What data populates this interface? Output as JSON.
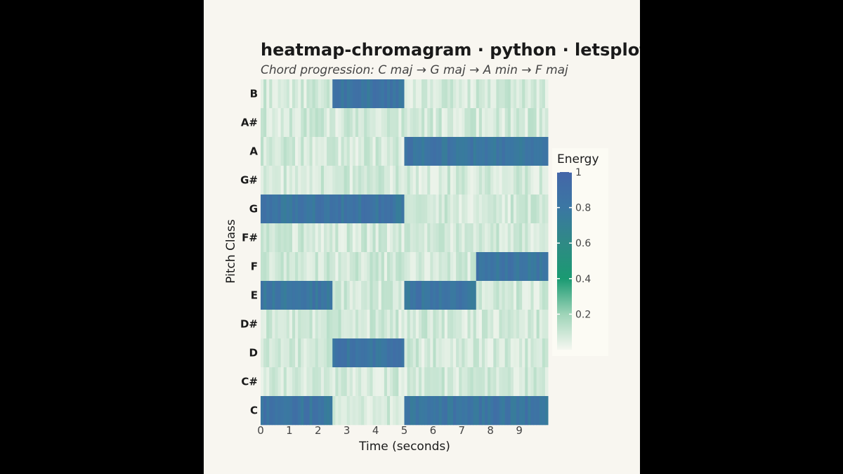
{
  "chart_data": {
    "type": "heatmap",
    "title": "heatmap-chromagram · python · letsplot · anyplot.ai",
    "subtitle": "Chord progression: C maj → G maj → A min → F maj",
    "xlabel": "Time (seconds)",
    "ylabel": "Pitch Class",
    "xlim": [
      0,
      10
    ],
    "x_ticks": [
      "0",
      "1",
      "2",
      "3",
      "4",
      "5",
      "6",
      "7",
      "8",
      "9"
    ],
    "pitch_classes": [
      "B",
      "A#",
      "A",
      "G#",
      "G",
      "F#",
      "F",
      "E",
      "D#",
      "D",
      "C#",
      "C"
    ],
    "segments": [
      {
        "start": 0.0,
        "end": 2.5,
        "active": [
          "C",
          "E",
          "G"
        ]
      },
      {
        "start": 2.5,
        "end": 5.0,
        "active": [
          "G",
          "B",
          "D"
        ]
      },
      {
        "start": 5.0,
        "end": 7.5,
        "active": [
          "A",
          "C",
          "E"
        ]
      },
      {
        "start": 7.5,
        "end": 10.0,
        "active": [
          "F",
          "A",
          "C"
        ]
      }
    ],
    "active_energy": 0.82,
    "background_energy": 0.08,
    "legend": {
      "title": "Energy",
      "ticks": [
        "1",
        "0.8",
        "0.6",
        "0.4",
        "0.2"
      ],
      "range": [
        0,
        1
      ],
      "placement": "right"
    },
    "colorscale": [
      "#f5f7f0",
      "#9ed4b8",
      "#1a9a72",
      "#2f8a85",
      "#3b77a3",
      "#4466a8"
    ]
  }
}
